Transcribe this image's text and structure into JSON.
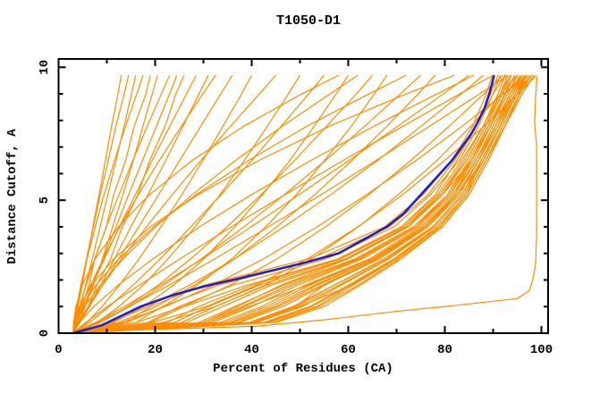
{
  "page": {
    "background": "#ffffff"
  },
  "chart_data": {
    "type": "line",
    "title": "T1050-D1",
    "xlabel": "Percent of Residues (CA)",
    "ylabel": "Distance Cutoff, A",
    "xlim": [
      0,
      100
    ],
    "ylim": [
      0,
      10
    ],
    "x_major_ticks": [
      0,
      20,
      40,
      60,
      80,
      100
    ],
    "x_minor_ticks": [
      10,
      30,
      50,
      70,
      90
    ],
    "y_major_ticks": [
      0,
      5,
      10
    ],
    "y_minor_ticks": [
      1,
      2,
      3,
      4,
      6,
      7,
      8,
      9
    ],
    "grid": false,
    "legend": "none",
    "colors": {
      "model_lines": "#ff8c00",
      "highlight_line": "#1f1fd1",
      "axis": "#000000"
    },
    "series_y_levels": [
      0,
      0.4,
      1,
      1.8,
      2.8,
      4,
      5.2,
      6.5,
      7.8,
      9,
      9.7
    ],
    "model_series_x": [
      [
        3,
        3.4,
        4,
        4.9,
        5.9,
        7.1,
        8.4,
        9.7,
        11,
        12.3,
        13
      ],
      [
        3,
        3.3,
        3.8,
        4.7,
        5.8,
        7.2,
        8.6,
        10.3,
        11.9,
        13.6,
        14.5
      ],
      [
        3,
        3.6,
        4.5,
        5.6,
        7,
        8.6,
        10.2,
        11.9,
        13.6,
        15.1,
        16
      ],
      [
        3,
        3.2,
        3.8,
        4.6,
        5.9,
        7.6,
        9.4,
        11.6,
        13.9,
        16.2,
        17.5
      ],
      [
        3,
        3.7,
        4.8,
        6.3,
        7.5,
        9.9,
        11.4,
        13.9,
        15.7,
        18.1,
        19
      ],
      [
        3,
        4.2,
        5.5,
        7.2,
        9.1,
        11.2,
        13.3,
        15.5,
        17.5,
        19.4,
        20.5
      ],
      [
        3,
        3.4,
        4.3,
        5.7,
        7.5,
        9.9,
        12.5,
        15.4,
        18.4,
        21.3,
        23
      ],
      [
        3,
        3.9,
        5.2,
        7,
        9.2,
        11.9,
        14.5,
        17.4,
        20.3,
        23,
        24.5
      ],
      [
        3,
        4.3,
        6.2,
        7.9,
        10.8,
        13.2,
        16.4,
        18.9,
        22.1,
        24.3,
        26
      ],
      [
        3,
        3.8,
        5.1,
        7,
        9.5,
        12.6,
        15.9,
        19.4,
        23.1,
        26.5,
        28.5
      ],
      [
        3,
        4.3,
        6.2,
        8.7,
        11.6,
        15,
        18.5,
        22.2,
        25.8,
        29.1,
        31
      ],
      [
        3,
        3.5,
        4.7,
        6.6,
        9.3,
        12.7,
        16.5,
        20.9,
        25.5,
        29.9,
        32.5
      ],
      [
        3,
        4.4,
        6.4,
        9.1,
        12.5,
        16.6,
        20.7,
        25.1,
        29.5,
        33.6,
        36
      ],
      [
        3,
        5.9,
        9,
        12.6,
        16.7,
        21.2,
        25.5,
        29.9,
        34.1,
        37.9,
        40
      ],
      [
        3,
        4.1,
        6.1,
        9.1,
        13.1,
        18.2,
        23.5,
        29.5,
        35.7,
        41.6,
        45
      ],
      [
        3,
        8,
        12.5,
        17.5,
        22.7,
        28.3,
        33.4,
        38.5,
        43.3,
        47.6,
        50
      ],
      [
        3,
        6.4,
        10.5,
        15.4,
        21.1,
        27.4,
        33.6,
        40,
        46.2,
        51.8,
        55
      ],
      [
        3,
        11.4,
        17.6,
        23.8,
        30.1,
        36.5,
        42.2,
        47.9,
        53,
        57.5,
        60
      ],
      [
        3,
        3.7,
        5.4,
        8.6,
        13.4,
        20.1,
        27.6,
        36.7,
        46.5,
        56.2,
        62
      ],
      [
        3,
        8.7,
        14.3,
        20.6,
        27.4,
        34.9,
        41.9,
        48.9,
        55.6,
        61.7,
        65
      ],
      [
        3,
        14.2,
        21.7,
        28.7,
        35.9,
        42.9,
        49.2,
        55.1,
        60.7,
        65.4,
        68
      ],
      [
        3,
        3.4,
        4.8,
        7.7,
        12.5,
        19.7,
        28.4,
        39.4,
        51.6,
        64.3,
        72
      ],
      [
        3,
        8.6,
        14.7,
        21.7,
        29.6,
        38.4,
        46.7,
        55.3,
        63.5,
        70.8,
        75
      ],
      [
        3,
        12.4,
        20.2,
        28.1,
        36.5,
        45.2,
        53,
        60.8,
        68.1,
        74.5,
        78
      ],
      [
        3,
        3.3,
        4.3,
        6.8,
        11.5,
        19,
        28.8,
        41.5,
        56.3,
        72,
        82
      ],
      [
        3,
        7.6,
        13.6,
        21,
        29.8,
        39.9,
        49.7,
        60.2,
        70.4,
        79.7,
        85
      ],
      [
        3,
        3.1,
        3.6,
        4.9,
        7.6,
        12.4,
        18.8,
        27.7,
        38.5,
        50.4,
        58
      ],
      [
        3,
        10.8,
        18.5,
        27.1,
        36.5,
        46.7,
        56.3,
        66.1,
        75.2,
        83.4,
        88
      ],
      [
        3,
        16.1,
        25.8,
        35.5,
        45.3,
        55.3,
        64.2,
        73,
        81,
        88.1,
        92
      ],
      [
        3,
        21.6,
        32.5,
        42.7,
        52.5,
        62.1,
        70.3,
        78.4,
        85.5,
        91.6,
        95
      ],
      [
        3,
        5.6,
        10.1,
        16.7,
        25.2,
        35.8,
        46.8,
        59,
        71.5,
        83.1,
        90
      ],
      [
        3,
        8,
        14.6,
        22.8,
        32.4,
        43.5,
        54.3,
        65.8,
        77,
        87.2,
        93
      ],
      [
        3,
        13.1,
        22.1,
        32,
        42.5,
        53.6,
        63.7,
        74.1,
        83.7,
        92.2,
        97
      ],
      [
        3,
        19.5,
        30.6,
        41,
        51.6,
        62,
        71.2,
        80,
        88.2,
        95.2,
        99
      ],
      [
        3,
        4.3,
        7.3,
        12.3,
        19.6,
        29.2,
        39.9,
        52.3,
        65.5,
        78.4,
        86
      ],
      [
        3,
        14,
        19,
        30,
        52,
        67.5,
        75.5,
        81.5,
        85.8,
        88.6,
        89.8
      ],
      [
        3,
        16,
        21.5,
        33,
        54,
        68.5,
        76.5,
        82,
        86.5,
        89.5,
        91
      ],
      [
        3,
        18.5,
        25,
        36,
        55.5,
        69.5,
        77,
        83,
        87,
        90,
        91.5
      ],
      [
        3,
        19,
        26,
        39,
        58,
        71,
        78,
        82.5,
        86.5,
        90,
        92.5
      ],
      [
        3,
        22.5,
        29,
        40,
        58,
        71,
        78.5,
        83.5,
        88,
        91,
        92.5
      ],
      [
        3,
        24,
        31,
        41.5,
        58.5,
        71.5,
        79,
        84,
        88,
        91.5,
        93
      ],
      [
        3,
        25.5,
        32.5,
        43,
        59.5,
        72,
        79,
        84.5,
        88.5,
        91.5,
        93.5
      ],
      [
        3,
        26.5,
        34,
        44,
        60,
        72.5,
        79.5,
        84.5,
        88.5,
        92,
        93.5
      ],
      [
        3,
        30,
        37,
        46,
        60,
        72,
        79.5,
        85.5,
        89.5,
        92.5,
        93.8
      ],
      [
        3,
        29,
        36.5,
        46.5,
        61.5,
        73.5,
        80.5,
        85,
        89,
        92.5,
        94.5
      ],
      [
        3,
        30,
        38,
        47.5,
        62,
        74,
        80.5,
        85.5,
        89.5,
        92.5,
        94.5
      ],
      [
        3,
        31,
        38.5,
        48.5,
        62.5,
        74,
        81,
        85.5,
        89.5,
        93,
        95
      ],
      [
        3,
        32,
        40,
        49.5,
        63,
        74.5,
        81,
        86,
        89.5,
        93,
        95
      ],
      [
        3,
        31,
        39.5,
        51.5,
        65,
        76,
        82,
        85.5,
        89,
        92.5,
        96
      ],
      [
        3,
        33.5,
        42,
        51,
        64.5,
        75,
        81.5,
        86.5,
        90,
        93.5,
        95.5
      ],
      [
        3,
        34.5,
        43,
        52,
        65,
        75.5,
        82,
        86.5,
        90.5,
        93.5,
        96
      ],
      [
        3,
        35.5,
        44,
        53,
        65.5,
        76,
        82,
        86.5,
        90.5,
        94,
        96
      ],
      [
        3,
        36,
        45,
        53.5,
        65.5,
        76,
        82.5,
        87,
        90.5,
        94,
        96
      ],
      [
        3,
        37,
        45.5,
        54.5,
        66,
        76.5,
        82.5,
        87,
        91,
        94,
        96.5
      ],
      [
        3,
        37.5,
        46.5,
        55,
        66.5,
        76.5,
        83,
        87,
        91,
        94.5,
        96.5
      ],
      [
        3,
        40,
        49,
        55,
        66,
        76,
        82.5,
        88,
        91.5,
        95,
        96.5
      ],
      [
        3,
        39.5,
        48.5,
        57,
        67.5,
        77.5,
        83.5,
        87.5,
        91.5,
        94.5,
        97
      ],
      [
        3,
        39.5,
        49,
        57,
        68,
        77.5,
        83.5,
        88,
        91.5,
        95,
        97
      ],
      [
        3,
        40.5,
        49.5,
        58,
        68.5,
        77.5,
        83.5,
        88,
        91.5,
        95,
        97.5
      ],
      [
        3,
        41,
        50.5,
        58.5,
        68.5,
        78,
        84,
        88,
        91.5,
        95,
        97.5
      ],
      [
        3,
        40,
        50,
        60.5,
        70,
        79,
        84.5,
        87.5,
        91.5,
        95,
        98
      ],
      [
        3,
        42.5,
        52,
        60,
        69.5,
        78.5,
        84.5,
        88.5,
        92,
        95.5,
        98
      ],
      [
        3,
        43,
        52.5,
        60.5,
        69.5,
        79,
        84.5,
        88.5,
        92,
        95.5,
        98
      ],
      [
        3,
        43.5,
        53.5,
        61,
        70,
        79,
        84.5,
        88.5,
        92.5,
        95.5,
        98
      ],
      [
        3,
        44.5,
        54,
        62,
        70.5,
        79.5,
        85,
        89,
        92.5,
        96,
        98.5
      ],
      [
        3,
        45,
        55,
        62.5,
        71,
        79.5,
        85,
        89,
        92.5,
        96,
        98.5
      ]
    ],
    "outlier_model_points": [
      [
        3,
        0
      ],
      [
        13,
        0.1
      ],
      [
        27,
        0.18
      ],
      [
        41,
        0.26
      ],
      [
        55,
        0.5
      ],
      [
        70,
        0.82
      ],
      [
        80,
        1.0
      ],
      [
        87,
        1.14
      ],
      [
        95,
        1.3
      ],
      [
        97.5,
        1.6
      ],
      [
        98.2,
        2.0
      ],
      [
        98.8,
        2.6
      ],
      [
        99,
        3.6
      ],
      [
        99,
        5.0
      ],
      [
        99,
        7.1
      ],
      [
        98.6,
        7.9
      ],
      [
        98.8,
        8.9
      ],
      [
        99.1,
        9.65
      ]
    ],
    "highlight_series_points": [
      [
        3,
        0
      ],
      [
        9,
        0.3
      ],
      [
        13,
        0.65
      ],
      [
        17,
        1.0
      ],
      [
        24,
        1.45
      ],
      [
        30,
        1.75
      ],
      [
        36,
        2.0
      ],
      [
        43,
        2.3
      ],
      [
        51,
        2.65
      ],
      [
        58,
        3.0
      ],
      [
        63,
        3.5
      ],
      [
        68,
        4.0
      ],
      [
        71.5,
        4.5
      ],
      [
        74,
        5.0
      ],
      [
        76.5,
        5.5
      ],
      [
        79,
        6.0
      ],
      [
        81.5,
        6.5
      ],
      [
        83.5,
        7.0
      ],
      [
        85.5,
        7.5
      ],
      [
        87,
        8.0
      ],
      [
        88.3,
        8.5
      ],
      [
        89.2,
        9.0
      ],
      [
        89.8,
        9.4
      ],
      [
        90.2,
        9.7
      ]
    ]
  }
}
